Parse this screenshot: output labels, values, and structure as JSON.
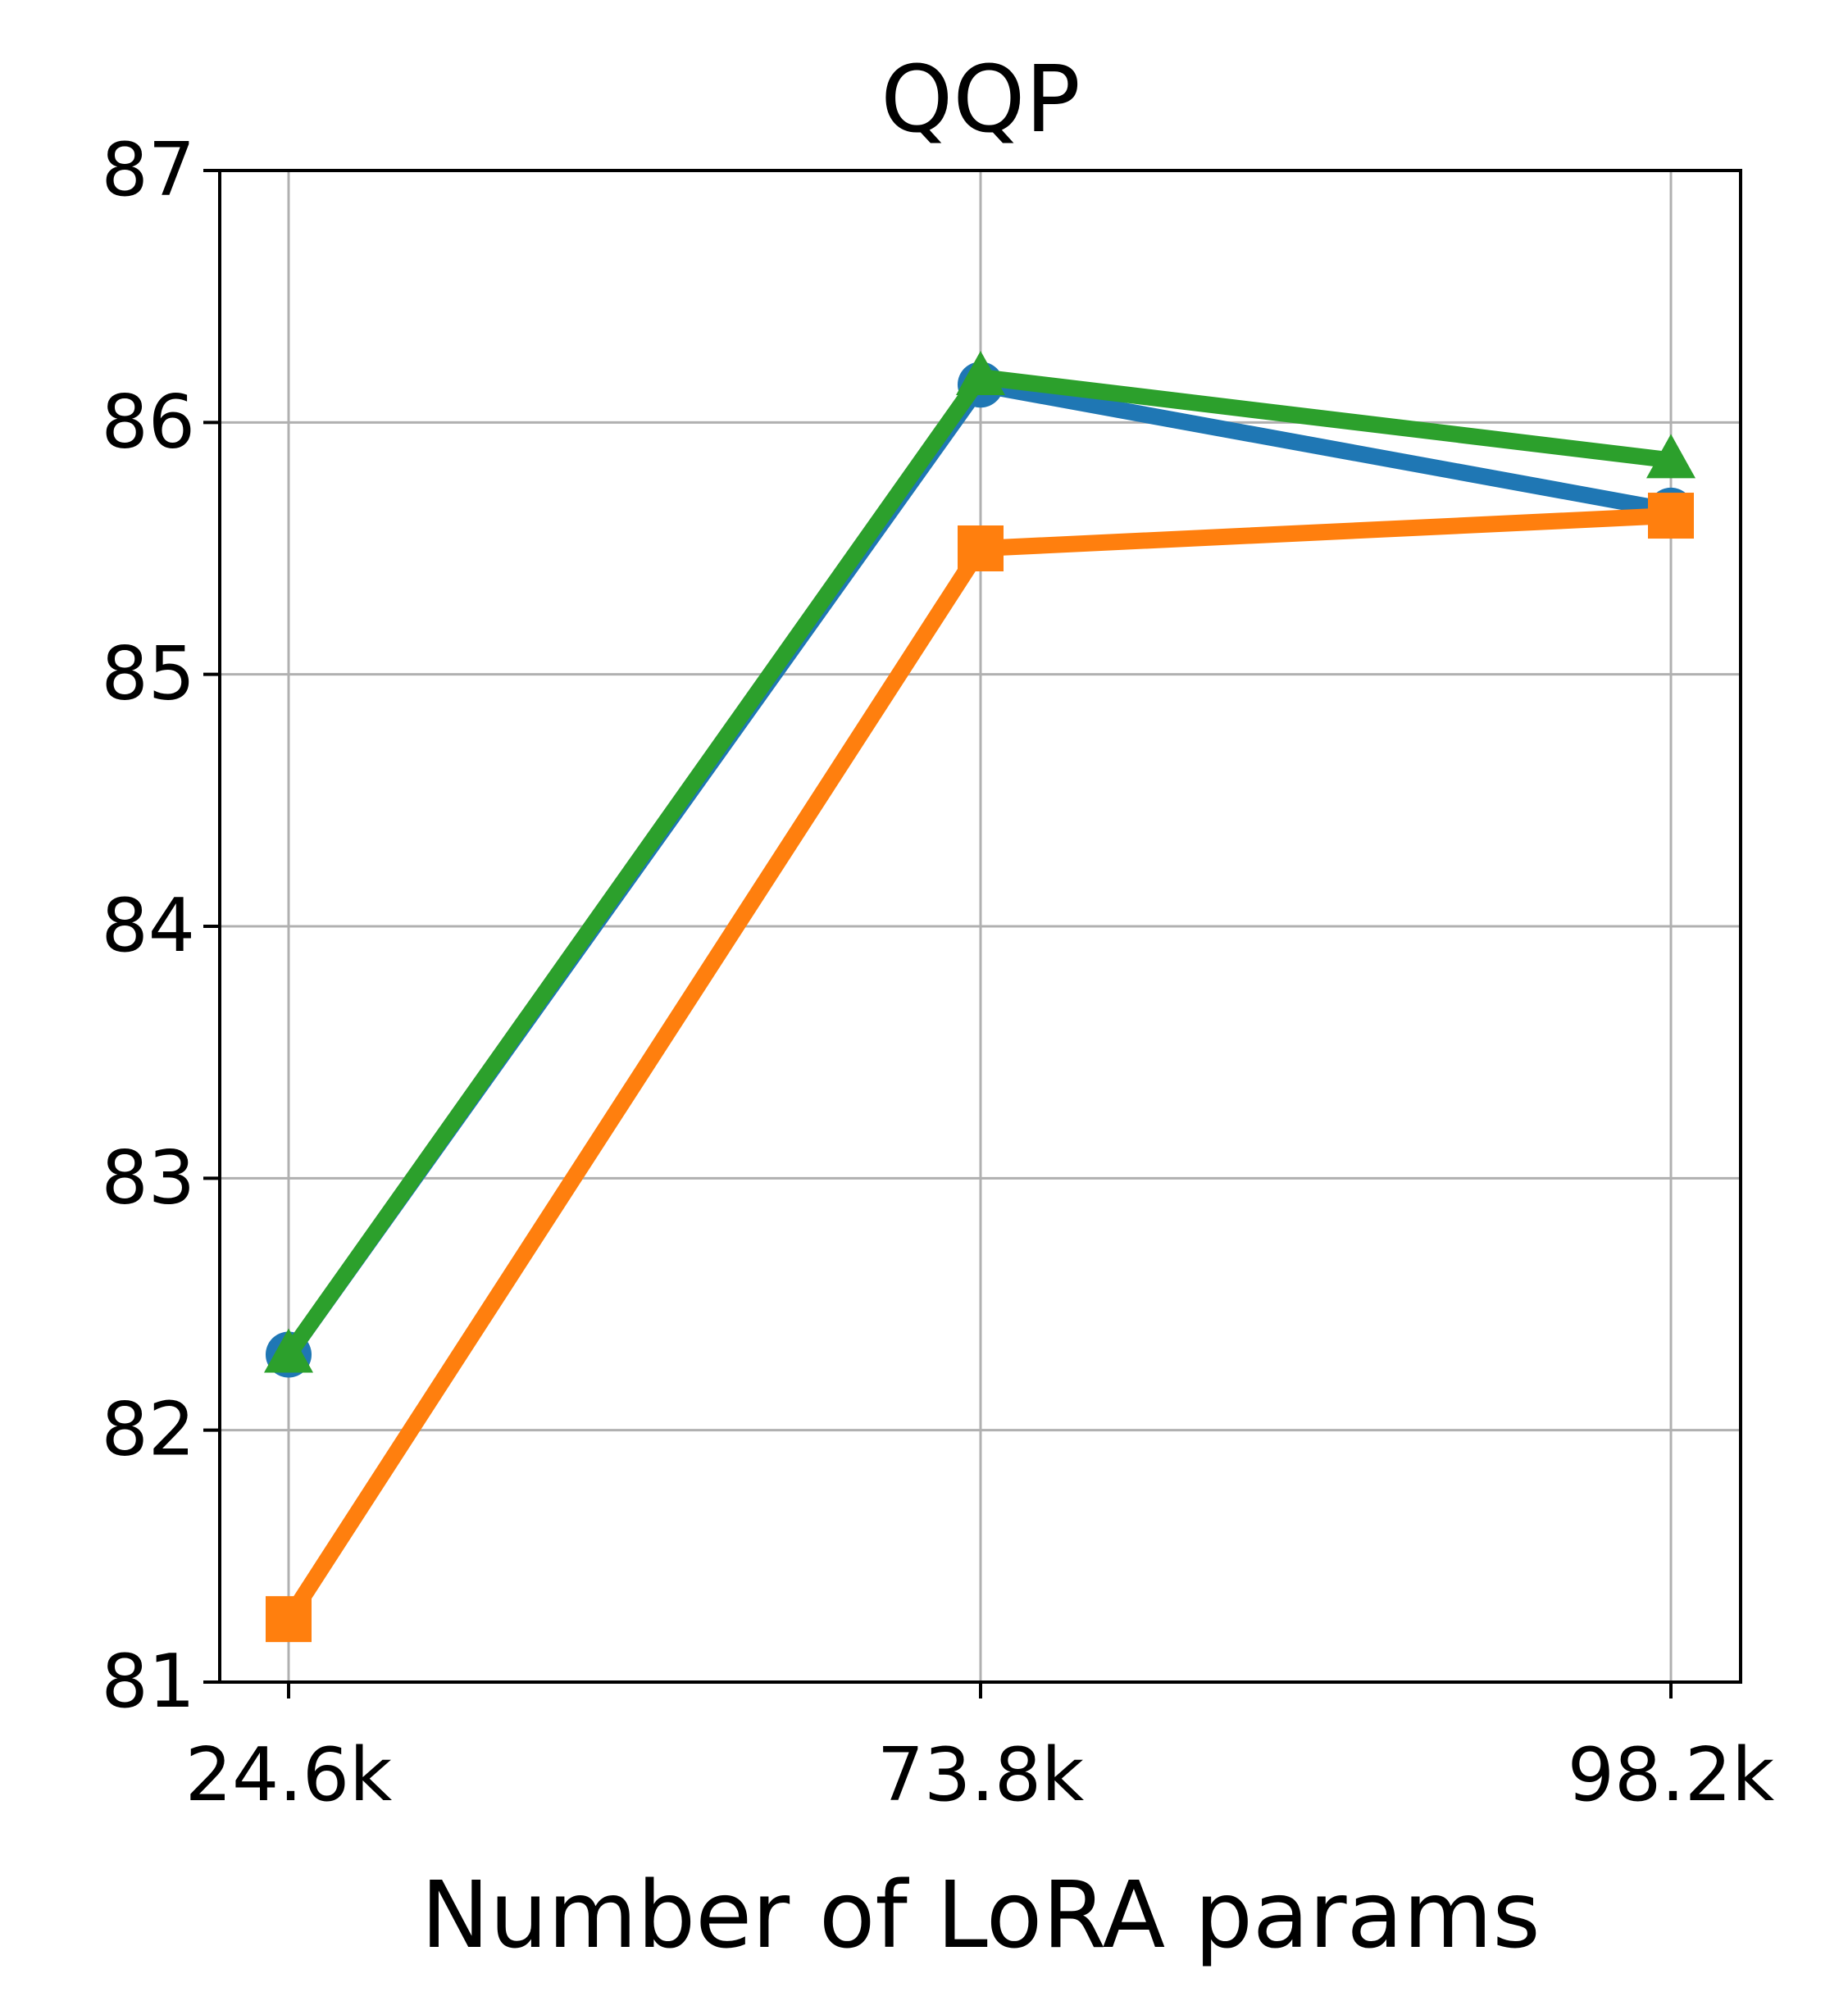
{
  "chart_data": {
    "type": "line",
    "title": "QQP",
    "xlabel": "Number of LoRA params",
    "ylabel": "",
    "categories": [
      "24.6k",
      "73.8k",
      "98.2k"
    ],
    "ylim": [
      81,
      87
    ],
    "yticks": [
      81,
      82,
      83,
      84,
      85,
      86,
      87
    ],
    "grid": true,
    "legend": "none",
    "series": [
      {
        "color": "#1f77b4",
        "marker": "circle",
        "values": [
          82.3,
          86.15,
          85.65
        ]
      },
      {
        "color": "#ff7f0e",
        "marker": "square",
        "values": [
          81.25,
          85.5,
          85.63
        ]
      },
      {
        "color": "#2ca02c",
        "marker": "triangle",
        "values": [
          82.3,
          86.18,
          85.85
        ]
      }
    ]
  }
}
